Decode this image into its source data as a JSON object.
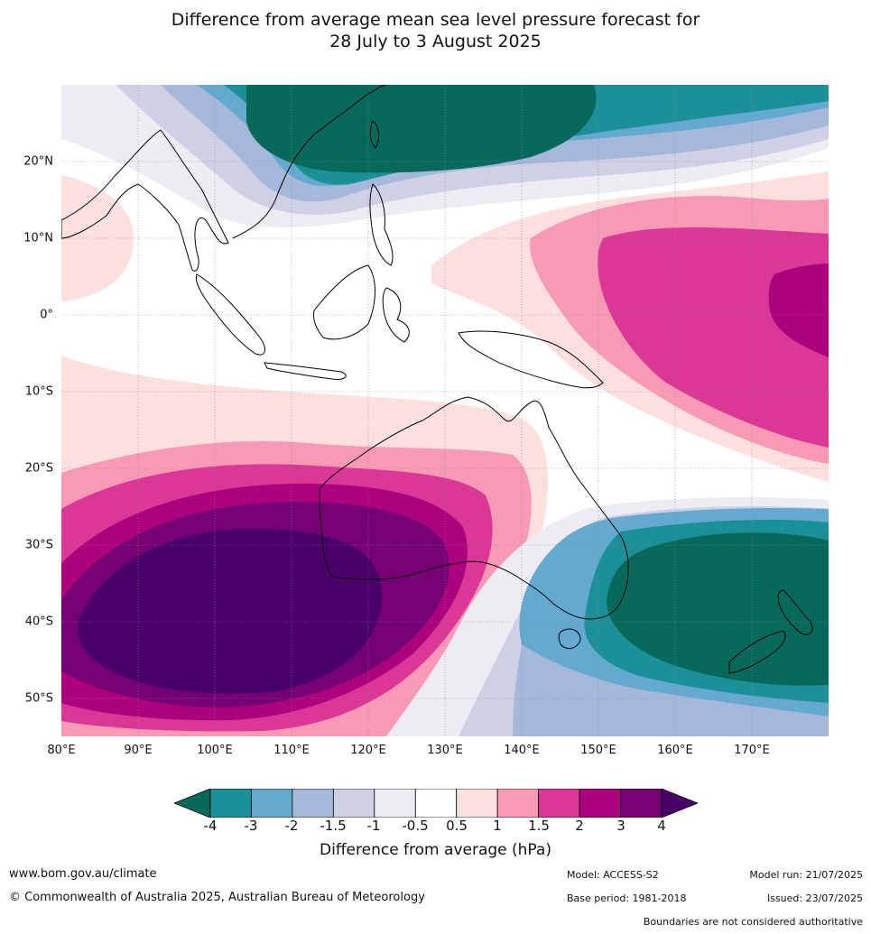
{
  "title_line1": "Difference from average mean sea level pressure forecast for",
  "title_line2": "28 July to 3 August 2025",
  "map": {
    "lon_range": [
      80,
      180
    ],
    "lat_range": [
      -55,
      30
    ],
    "lat_ticks": [
      "20°N",
      "10°N",
      "0°",
      "10°S",
      "20°S",
      "30°S",
      "40°S",
      "50°S"
    ],
    "lon_ticks": [
      "80°E",
      "90°E",
      "100°E",
      "110°E",
      "120°E",
      "130°E",
      "140°E",
      "150°E",
      "160°E",
      "170°E"
    ]
  },
  "legend": {
    "title": "Difference from average (hPa)",
    "ticks": [
      "-4",
      "-3",
      "-2",
      "-1.5",
      "-1",
      "-0.5",
      "0.5",
      "1",
      "1.5",
      "2",
      "3",
      "4"
    ],
    "colors": [
      "#07695a",
      "#1b9098",
      "#64a9d0",
      "#a6b8da",
      "#cfd0e6",
      "#efebf3",
      "#ffffff",
      "#fde0de",
      "#f89ab5",
      "#da3796",
      "#ae017e",
      "#760175",
      "#49006a"
    ]
  },
  "footer": {
    "website": "www.bom.gov.au/climate",
    "copyright": "© Commonwealth of Australia 2025, Australian Bureau of Meteorology",
    "model": "Model: ACCESS-S2",
    "base_period": "Base period: 1981-2018",
    "model_run": "Model run: 21/07/2025",
    "issued": "Issued: 23/07/2025",
    "disclaimer": "Boundaries are not considered authoritative"
  }
}
